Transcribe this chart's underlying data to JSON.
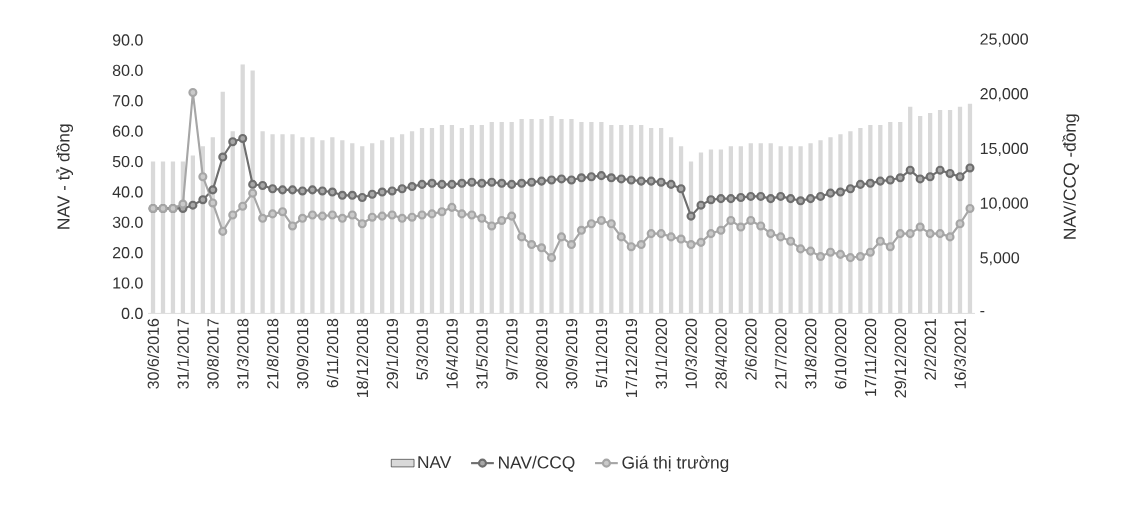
{
  "chart_data": {
    "type": "line",
    "ylabel": "NAV - tỷ đồng",
    "y2label": "NAV/CCQ -đồng",
    "categories": [
      "30/6/2016",
      null,
      null,
      "31/1/2017",
      null,
      null,
      "30/8/2017",
      null,
      null,
      "31/3/2018",
      null,
      null,
      "21/8/2018",
      null,
      null,
      "30/9/2018",
      null,
      null,
      "6/11/2018",
      null,
      null,
      "18/12/2018",
      null,
      null,
      "29/1/2019",
      null,
      null,
      "5/3/2019",
      null,
      null,
      "16/4/2019",
      null,
      null,
      "31/5/2019",
      null,
      null,
      "9/7/2019",
      null,
      null,
      "20/8/2019",
      null,
      null,
      "30/9/2019",
      null,
      null,
      "5/11/2019",
      null,
      null,
      "17/12/2019",
      null,
      null,
      "31/1/2020",
      null,
      null,
      "10/3/2020",
      null,
      null,
      "28/4/2020",
      null,
      null,
      "2/6/2020",
      null,
      null,
      "21/7/2020",
      null,
      null,
      "31/8/2020",
      null,
      null,
      "6/10/2020",
      null,
      null,
      "17/11/2020",
      null,
      null,
      "29/12/2020",
      null,
      null,
      "2/2/2021",
      null,
      null,
      "16/3/2021",
      null
    ],
    "series": [
      {
        "name": "NAV",
        "type": "bar",
        "color": "#d9d9d9",
        "values": [
          50,
          50,
          50,
          50,
          52,
          55,
          58,
          73,
          60,
          82,
          80,
          60,
          59,
          59,
          59,
          58,
          58,
          57,
          58,
          57,
          56,
          55,
          56,
          57,
          58,
          59,
          60,
          61,
          61,
          62,
          62,
          61,
          62,
          62,
          63,
          63,
          63,
          64,
          64,
          64,
          65,
          64,
          64,
          63,
          63,
          63,
          62,
          62,
          62,
          62,
          61,
          61,
          58,
          55,
          50,
          53,
          54,
          54,
          55,
          55,
          56,
          56,
          56,
          55,
          55,
          55,
          56,
          57,
          58,
          59,
          60,
          61,
          62,
          62,
          63,
          63,
          68,
          65,
          66,
          67,
          67,
          68,
          69
        ]
      },
      {
        "name": "NAV/CCQ",
        "axis": "y2",
        "color": "#6e6e6e",
        "values": [
          9600,
          9600,
          9600,
          9600,
          9900,
          10400,
          11300,
          14300,
          15700,
          16000,
          11800,
          11700,
          11400,
          11300,
          11300,
          11200,
          11300,
          11200,
          11100,
          10800,
          10800,
          10600,
          10900,
          11100,
          11200,
          11400,
          11600,
          11800,
          11900,
          11800,
          11800,
          11900,
          12000,
          11900,
          12000,
          11900,
          11800,
          11900,
          12000,
          12100,
          12200,
          12300,
          12200,
          12400,
          12500,
          12600,
          12400,
          12300,
          12200,
          12100,
          12100,
          12000,
          11800,
          11400,
          8900,
          9900,
          10400,
          10500,
          10500,
          10600,
          10700,
          10700,
          10500,
          10700,
          10500,
          10300,
          10500,
          10700,
          11000,
          11100,
          11400,
          11800,
          11900,
          12100,
          12200,
          12400,
          13100,
          12300,
          12500,
          13100,
          12800,
          12500,
          13300
        ]
      },
      {
        "name": "Giá thị trường",
        "axis": "y2",
        "color": "#a6a6a6",
        "values": [
          9600,
          9600,
          9600,
          10000,
          20200,
          12500,
          10100,
          7500,
          9000,
          9800,
          11000,
          8700,
          9100,
          9300,
          8000,
          8700,
          9000,
          8900,
          9000,
          8700,
          9000,
          8200,
          8800,
          8900,
          9000,
          8700,
          8800,
          9000,
          9100,
          9300,
          9700,
          9100,
          9000,
          8700,
          8000,
          8500,
          8900,
          7000,
          6300,
          6000,
          5100,
          7000,
          6300,
          7600,
          8200,
          8500,
          8200,
          7000,
          6100,
          6300,
          7300,
          7300,
          7000,
          6800,
          6300,
          6500,
          7300,
          7600,
          8500,
          7900,
          8500,
          8000,
          7300,
          7000,
          6600,
          5900,
          5700,
          5200,
          5600,
          5400,
          5100,
          5200,
          5600,
          6600,
          6100,
          7300,
          7300,
          7900,
          7300,
          7300,
          7000,
          8200,
          9600
        ]
      }
    ],
    "ylim": [
      0,
      90
    ],
    "yticks": [
      {
        "value": 0,
        "label": "0.0"
      },
      {
        "value": 10,
        "label": "10.0"
      },
      {
        "value": 20,
        "label": "20.0"
      },
      {
        "value": 30,
        "label": "30.0"
      },
      {
        "value": 40,
        "label": "40.0"
      },
      {
        "value": 50,
        "label": "50.0"
      },
      {
        "value": 60,
        "label": "60.0"
      },
      {
        "value": 70,
        "label": "70.0"
      },
      {
        "value": 80,
        "label": "80.0"
      },
      {
        "value": 90,
        "label": "90.0"
      }
    ],
    "y2lim": [
      0,
      25000
    ],
    "y2ticks": [
      {
        "value": 0,
        "label": "-"
      },
      {
        "value": 5000,
        "label": "5,000"
      },
      {
        "value": 10000,
        "label": "10,000"
      },
      {
        "value": 15000,
        "label": "15,000"
      },
      {
        "value": 20000,
        "label": "20,000"
      },
      {
        "value": 25000,
        "label": "25,000"
      }
    ],
    "legend": "bottom",
    "marker": "circle",
    "grid": false
  }
}
